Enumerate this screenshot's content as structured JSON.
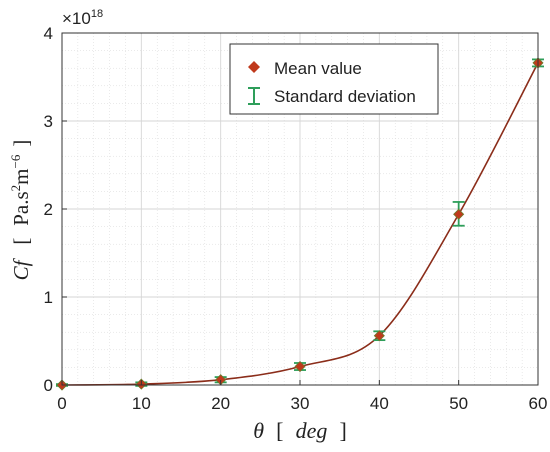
{
  "chart_data": {
    "type": "scatter",
    "x": [
      0,
      10,
      20,
      30,
      40,
      50,
      60
    ],
    "series": [
      {
        "name": "Mean value",
        "values": [
          0.0,
          0.01,
          0.06,
          0.21,
          0.56,
          1.94,
          3.66
        ],
        "marker": "diamond",
        "color": "#c0391c"
      },
      {
        "name": "Standard deviation",
        "lower": [
          -0.01,
          -0.01,
          0.03,
          0.17,
          0.51,
          1.81,
          3.62
        ],
        "upper": [
          0.01,
          0.03,
          0.09,
          0.25,
          0.61,
          2.08,
          3.7
        ],
        "marker": "errorbar",
        "color": "#2e9e5a"
      }
    ],
    "fit_line": {
      "color": "#8b2d1a"
    },
    "xlim": [
      0,
      60
    ],
    "ylim": [
      0,
      4
    ],
    "xticks": [
      "0",
      "10",
      "20",
      "30",
      "40",
      "50",
      "60"
    ],
    "yticks": [
      "0",
      "1",
      "2",
      "3",
      "4"
    ],
    "y_exponent_label": "×10",
    "y_exponent_power": "18",
    "xlabel": {
      "var": "θ",
      "open": "[",
      "unit": "deg",
      "close": "]"
    },
    "ylabel": {
      "var": "Cf",
      "open": "[",
      "unit": "Pa.s",
      "sup1": "2",
      "mid": "m",
      "sup2": "−6",
      "close": "]"
    },
    "grid": true,
    "legend_position": "top-right"
  },
  "colors": {
    "mean_marker": "#c0391c",
    "errorbar": "#2e9e5a",
    "line": "#8b2d1a",
    "grid": "#d6d6d6",
    "axis": "#333333"
  }
}
